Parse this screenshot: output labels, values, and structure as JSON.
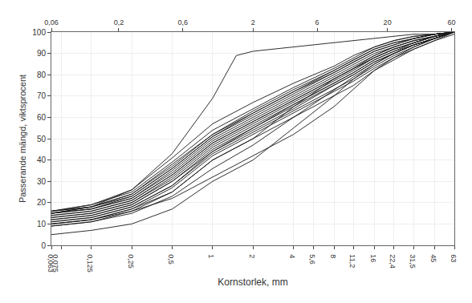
{
  "chart_data": {
    "type": "line",
    "xlabel": "Kornstorlek, mm",
    "ylabel": "Passerande mängd, viktsprocent",
    "log": "x",
    "grid": true,
    "color": "#1a1a1a",
    "xlim": [
      0.063,
      63
    ],
    "ylim": [
      0,
      100
    ],
    "xticks": [
      {
        "value": 0.063,
        "label": "0,063"
      },
      {
        "value": 0.075,
        "label": "0,075"
      },
      {
        "value": 0.125,
        "label": "0,125"
      },
      {
        "value": 0.25,
        "label": "0,25"
      },
      {
        "value": 0.5,
        "label": "0,5"
      },
      1,
      2,
      4,
      {
        "value": 5.6,
        "label": "5,6"
      },
      8,
      {
        "value": 11.2,
        "label": "11,2"
      },
      16,
      {
        "value": 22.4,
        "label": "22,4"
      },
      {
        "value": 31.5,
        "label": "31,5"
      },
      45,
      63
    ],
    "x2lim": [
      0.063,
      63
    ],
    "x2ticks": [
      {
        "value": 0.063,
        "label": "0,06"
      },
      {
        "value": 0.2,
        "label": "0,2"
      },
      {
        "value": 0.6,
        "label": "0,6"
      },
      2,
      6,
      20,
      60
    ],
    "yticks": [
      0,
      10,
      20,
      30,
      40,
      50,
      60,
      70,
      80,
      90,
      100
    ],
    "series": [
      {
        "x": [
          0.063,
          0.125,
          0.25,
          0.5,
          1.0,
          2.0,
          4.0,
          8.0,
          11.2,
          16,
          22.4,
          31.5,
          45,
          63
        ],
        "values": [
          15,
          17,
          22,
          35,
          50,
          60,
          70,
          80,
          85,
          90,
          93,
          96,
          98,
          100
        ]
      },
      {
        "x": [
          0.063,
          0.125,
          0.25,
          0.5,
          1.0,
          2.0,
          4.0,
          8.0,
          11.2,
          16,
          22.4,
          31.5,
          45,
          63
        ],
        "values": [
          16,
          18,
          23,
          36,
          51,
          61,
          71,
          81,
          86,
          91,
          94,
          97,
          99,
          100
        ]
      },
      {
        "x": [
          0.063,
          0.125,
          0.25,
          0.5,
          1.0,
          2.0,
          4.0,
          8.0,
          11.2,
          16,
          22.4,
          31.5,
          45,
          63
        ],
        "values": [
          14,
          16,
          21,
          33,
          48,
          58,
          68,
          78,
          83,
          88,
          92,
          95,
          98,
          100
        ]
      },
      {
        "x": [
          0.063,
          0.125,
          0.25,
          0.5,
          1.0,
          2.0,
          4.0,
          8.0,
          11.2,
          16,
          22.4,
          31.5,
          45,
          63
        ],
        "values": [
          15,
          18,
          24,
          38,
          52,
          62,
          72,
          82,
          87,
          92,
          95,
          97,
          99,
          100
        ]
      },
      {
        "x": [
          0.063,
          0.125,
          0.25,
          0.5,
          1.0,
          2.0,
          4.0,
          8.0,
          11.2,
          16,
          22.4,
          31.5,
          45,
          63
        ],
        "values": [
          13,
          15,
          20,
          31,
          46,
          56,
          66,
          76,
          81,
          87,
          91,
          94,
          97,
          100
        ]
      },
      {
        "x": [
          0.063,
          0.125,
          0.25,
          0.5,
          1.0,
          2.0,
          4.0,
          8.0,
          11.2,
          16,
          22.4,
          31.5,
          45,
          63
        ],
        "values": [
          16,
          19,
          25,
          39,
          54,
          64,
          74,
          83,
          88,
          93,
          96,
          98,
          99,
          100
        ]
      },
      {
        "x": [
          0.063,
          0.125,
          0.25,
          0.5,
          1.0,
          2.0,
          4.0,
          8.0,
          11.2,
          16,
          22.4,
          31.5,
          45,
          63
        ],
        "values": [
          12,
          14,
          19,
          30,
          45,
          55,
          65,
          75,
          80,
          86,
          90,
          94,
          97,
          100
        ]
      },
      {
        "x": [
          0.063,
          0.125,
          0.25,
          0.5,
          1.0,
          2.0,
          4.0,
          8.0,
          11.2,
          16,
          22.4,
          31.5,
          45,
          63
        ],
        "values": [
          10,
          12,
          17,
          27,
          42,
          52,
          62,
          72,
          77,
          83,
          88,
          92,
          96,
          99
        ]
      },
      {
        "x": [
          0.063,
          0.125,
          0.25,
          0.5,
          1.0,
          2.0,
          4.0,
          8.0,
          11.2,
          16,
          22.4,
          31.5,
          45,
          63
        ],
        "values": [
          11,
          13,
          18,
          28,
          43,
          53,
          63,
          73,
          78,
          84,
          89,
          93,
          97,
          100
        ]
      },
      {
        "x": [
          0.063,
          0.125,
          0.25,
          0.5,
          1.0,
          2.0,
          4.0,
          5.6,
          8.0,
          11.2,
          16,
          22.4,
          31.5,
          45,
          63
        ],
        "values": [
          9,
          11,
          16,
          25,
          40,
          50,
          60,
          65,
          70,
          75,
          82,
          87,
          92,
          96,
          100
        ]
      },
      {
        "x": [
          0.063,
          0.125,
          0.25,
          0.5,
          1.0,
          2.0,
          4.0,
          8.0,
          11.2,
          16,
          22.4,
          31.5,
          45,
          63
        ],
        "values": [
          5,
          7,
          10,
          17,
          30,
          40,
          55,
          70,
          78,
          85,
          90,
          94,
          97,
          100
        ]
      },
      {
        "x": [
          0.063,
          0.125,
          0.25,
          0.5,
          1.0,
          2.0,
          4.0,
          8.0,
          11.2,
          16,
          22.4,
          31.5,
          45,
          63
        ],
        "values": [
          16,
          18,
          24,
          37,
          52,
          63,
          73,
          82,
          87,
          92,
          95,
          97,
          99,
          100
        ]
      },
      {
        "x": [
          0.063,
          0.125,
          0.25,
          0.5,
          1.0,
          2.0,
          4.0,
          8.0,
          11.2,
          16,
          22.4,
          31.5,
          45,
          63
        ],
        "values": [
          15,
          17,
          22,
          34,
          49,
          59,
          69,
          79,
          84,
          89,
          93,
          96,
          98,
          100
        ]
      },
      {
        "x": [
          0.063,
          0.125,
          0.25,
          0.5,
          1.0,
          2.0,
          4.0,
          8.0,
          11.2,
          16,
          22.4,
          31.5,
          45,
          63
        ],
        "values": [
          14,
          16,
          21,
          33,
          48,
          58,
          68,
          78,
          83,
          88,
          92,
          95,
          98,
          100
        ]
      },
      {
        "x": [
          0.063,
          0.125,
          0.25,
          0.5,
          1.0,
          2.0,
          4.0,
          8.0,
          11.2,
          16,
          22.4,
          31.5,
          45,
          63
        ],
        "values": [
          13,
          15,
          20,
          32,
          47,
          57,
          67,
          77,
          82,
          88,
          92,
          95,
          98,
          100
        ]
      },
      {
        "x": [
          0.063,
          0.125,
          0.25,
          0.5,
          1.0,
          2.0,
          4.0,
          8.0,
          11.2,
          16,
          22.4,
          31.5,
          45,
          63
        ],
        "values": [
          12,
          14,
          19,
          30,
          44,
          54,
          64,
          75,
          80,
          86,
          90,
          94,
          97,
          100
        ]
      },
      {
        "x": [
          0.063,
          0.125,
          0.25,
          0.5,
          1.0,
          2.0,
          4.0,
          8.0,
          11.2,
          16,
          22.4,
          31.5,
          63
        ],
        "values": [
          10,
          12,
          17,
          25,
          40,
          50,
          65,
          78,
          83,
          89,
          93,
          96,
          100
        ]
      },
      {
        "x": [
          0.063,
          0.125,
          0.25,
          0.5,
          1.0,
          2.0,
          4.0,
          8.0,
          11.2,
          16,
          22.4,
          31.5,
          45,
          63
        ],
        "values": [
          16,
          19,
          26,
          41,
          57,
          67,
          76,
          84,
          89,
          93,
          96,
          98,
          99,
          100
        ]
      },
      {
        "x": [
          0.063,
          0.125,
          0.25,
          0.5,
          1.0,
          1.5,
          2.0,
          4.0,
          8.0,
          11.2,
          16,
          22.4,
          31.5,
          45,
          63
        ],
        "values": [
          15,
          18,
          26,
          43,
          69,
          89,
          91,
          93,
          95,
          96,
          97,
          98,
          99,
          99,
          100
        ]
      },
      {
        "x": [
          0.063,
          0.125,
          0.25,
          0.5,
          1.0,
          2.0,
          4.0,
          8.0,
          11.2,
          16,
          22.4,
          31.5,
          45,
          63
        ],
        "values": [
          15,
          17,
          23,
          36,
          51,
          62,
          72,
          81,
          86,
          91,
          94,
          97,
          99,
          100
        ]
      },
      {
        "x": [
          0.063,
          0.125,
          0.25,
          0.5,
          1.0,
          2.0,
          4.0,
          8.0,
          16,
          22.4,
          31.5,
          45,
          63
        ],
        "values": [
          10,
          12,
          16,
          22,
          32,
          42,
          52,
          65,
          82,
          88,
          93,
          97,
          100
        ]
      },
      {
        "x": [
          0.063,
          0.125,
          0.25,
          0.5,
          1.0,
          2.0,
          4.0,
          8.0,
          11.2,
          16,
          22.4,
          31.5,
          45,
          63
        ],
        "values": [
          11,
          13,
          18,
          28,
          44,
          55,
          66,
          76,
          81,
          87,
          91,
          95,
          98,
          100
        ]
      },
      {
        "x": [
          0.063,
          0.125,
          0.25,
          0.5,
          1.0,
          2.0,
          4.0,
          8.0,
          11.2,
          16,
          22.4,
          31.5,
          45,
          63
        ],
        "values": [
          9,
          11,
          15,
          23,
          36,
          47,
          60,
          73,
          79,
          85,
          90,
          94,
          97,
          100
        ]
      }
    ]
  }
}
